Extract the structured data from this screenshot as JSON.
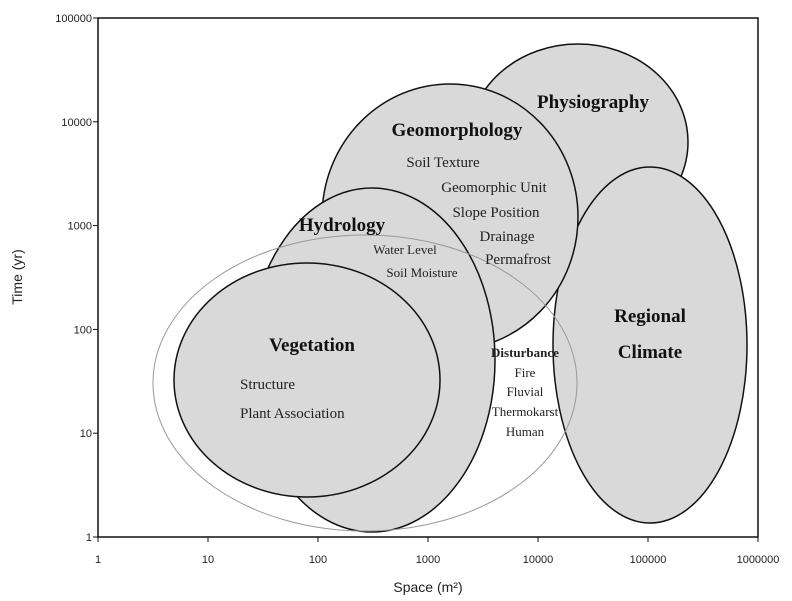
{
  "axes": {
    "x_label": "Space (m²)",
    "y_label": "Time (yr)",
    "x_ticks": [
      "1",
      "10",
      "100",
      "1000",
      "10000",
      "100000",
      "1000000"
    ],
    "y_ticks": [
      "1",
      "10",
      "100",
      "1000",
      "10000",
      "100000"
    ]
  },
  "regions": [
    {
      "label": "Physiography",
      "items": []
    },
    {
      "label": "Geomorphology",
      "items": [
        "Soil Texture",
        "Geomorphic Unit",
        "Slope Position",
        "Drainage",
        "Permafrost"
      ]
    },
    {
      "label": "Hydrology",
      "items": [
        "Water Level",
        "Soil Moisture"
      ]
    },
    {
      "label": "Vegetation",
      "items": [
        "Structure",
        "Plant Association"
      ]
    },
    {
      "label": "Disturbance",
      "items": [
        "Fire",
        "Fluvial",
        "Thermokarst",
        "Human"
      ]
    },
    {
      "label": "Regional Climate",
      "items": []
    }
  ]
}
